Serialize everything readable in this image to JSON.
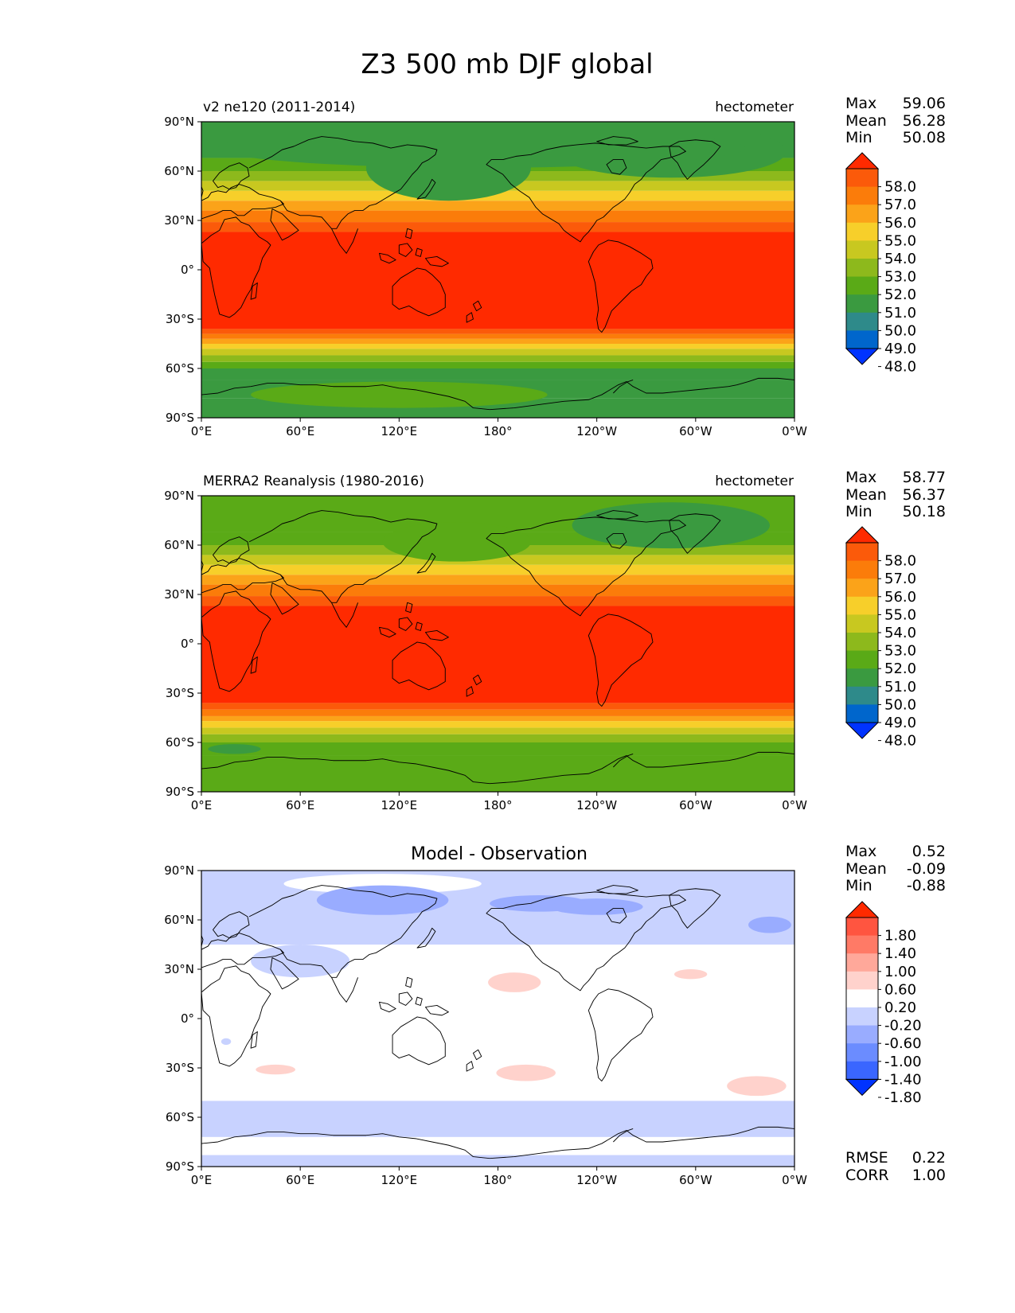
{
  "figure": {
    "title": "Z3 500 mb DJF global"
  },
  "colors": {
    "abs_levels": [
      "#0033ff",
      "#0066cc",
      "#2e8a8a",
      "#3a9a40",
      "#5aaa17",
      "#8db91c",
      "#c8c820",
      "#f7cf2a",
      "#fba319",
      "#fb7c0a",
      "#fb5a0a",
      "#ff2a00"
    ],
    "diff_levels": [
      "#0033ff",
      "#3a66ff",
      "#6b8cff",
      "#99acff",
      "#c8d2ff",
      "#ffffff",
      "#ffd2cc",
      "#ffa89a",
      "#ff7a66",
      "#ff5540",
      "#ff2a00"
    ],
    "land_line": "#000000"
  },
  "chart_data": [
    {
      "type": "heatmap",
      "panel": "test",
      "left_title": "v2 ne120 (2011-2014)",
      "units": "hectometer",
      "center_title": "",
      "xlabels": [
        "0°E",
        "60°E",
        "120°E",
        "180°",
        "120°W",
        "60°W",
        "0°W"
      ],
      "x_values": [
        0,
        60,
        120,
        180,
        240,
        300,
        360
      ],
      "ylabels": [
        "90°N",
        "60°N",
        "30°N",
        "0°",
        "30°S",
        "60°S",
        "90°S"
      ],
      "y_values": [
        90,
        60,
        30,
        0,
        -30,
        -60,
        -90
      ],
      "xlim": [
        0,
        360
      ],
      "ylim": [
        -90,
        90
      ],
      "stats": {
        "Max": "59.06",
        "Mean": "56.28",
        "Min": "50.08"
      },
      "colorbar_ticks": [
        "58.0",
        "57.0",
        "56.0",
        "55.0",
        "54.0",
        "53.0",
        "52.0",
        "51.0",
        "50.0",
        "49.0",
        "48.0"
      ],
      "bands": [
        {
          "lat": -90,
          "level": 3
        },
        {
          "lat": -78,
          "level": 3
        },
        {
          "lat": -67,
          "level": 3
        },
        {
          "lat": -60,
          "level": 4
        },
        {
          "lat": -56,
          "level": 5
        },
        {
          "lat": -52,
          "level": 6
        },
        {
          "lat": -48,
          "level": 7
        },
        {
          "lat": -45,
          "level": 8
        },
        {
          "lat": -42,
          "level": 9
        },
        {
          "lat": -39,
          "level": 10
        },
        {
          "lat": -36,
          "level": 11
        },
        {
          "lat": 23,
          "level": 10
        },
        {
          "lat": 29,
          "level": 9
        },
        {
          "lat": 36,
          "level": 8
        },
        {
          "lat": 42,
          "level": 7
        },
        {
          "lat": 48,
          "level": 6
        },
        {
          "lat": 54,
          "level": 5
        },
        {
          "lat": 60,
          "level": 4
        },
        {
          "lat": 68,
          "level": 3
        },
        {
          "lat": 90,
          "level": 3
        }
      ],
      "blobs": [
        {
          "lon": 150,
          "lat": 62,
          "rlon": 50,
          "rlat": 20,
          "level": 3
        },
        {
          "lon": 285,
          "lat": 72,
          "rlon": 70,
          "rlat": 16,
          "level": 3
        },
        {
          "lon": 170,
          "lat": 74,
          "rlon": 160,
          "rlat": 12,
          "level": 3
        },
        {
          "lon": 120,
          "lat": -76,
          "rlon": 90,
          "rlat": 8,
          "level": 4
        }
      ]
    },
    {
      "type": "heatmap",
      "panel": "reference",
      "left_title": "MERRA2 Reanalysis (1980-2016)",
      "units": "hectometer",
      "center_title": "",
      "xlabels": [
        "0°E",
        "60°E",
        "120°E",
        "180°",
        "120°W",
        "60°W",
        "0°W"
      ],
      "x_values": [
        0,
        60,
        120,
        180,
        240,
        300,
        360
      ],
      "ylabels": [
        "90°N",
        "60°N",
        "30°N",
        "0°",
        "30°S",
        "60°S",
        "90°S"
      ],
      "y_values": [
        90,
        60,
        30,
        0,
        -30,
        -60,
        -90
      ],
      "xlim": [
        0,
        360
      ],
      "ylim": [
        -90,
        90
      ],
      "stats": {
        "Max": "58.77",
        "Mean": "56.37",
        "Min": "50.18"
      },
      "colorbar_ticks": [
        "58.0",
        "57.0",
        "56.0",
        "55.0",
        "54.0",
        "53.0",
        "52.0",
        "51.0",
        "50.0",
        "49.0",
        "48.0"
      ],
      "bands": [
        {
          "lat": -90,
          "level": 4
        },
        {
          "lat": -68,
          "level": 4
        },
        {
          "lat": -60,
          "level": 5
        },
        {
          "lat": -55,
          "level": 6
        },
        {
          "lat": -51,
          "level": 7
        },
        {
          "lat": -47,
          "level": 8
        },
        {
          "lat": -44,
          "level": 9
        },
        {
          "lat": -40,
          "level": 10
        },
        {
          "lat": -36,
          "level": 11
        },
        {
          "lat": 23,
          "level": 10
        },
        {
          "lat": 29,
          "level": 9
        },
        {
          "lat": 36,
          "level": 8
        },
        {
          "lat": 42,
          "level": 7
        },
        {
          "lat": 48,
          "level": 6
        },
        {
          "lat": 54,
          "level": 5
        },
        {
          "lat": 60,
          "level": 4
        },
        {
          "lat": 68,
          "level": 4
        },
        {
          "lat": 90,
          "level": 4
        }
      ],
      "blobs": [
        {
          "lon": 155,
          "lat": 62,
          "rlon": 45,
          "rlat": 12,
          "level": 4
        },
        {
          "lon": 285,
          "lat": 72,
          "rlon": 60,
          "rlat": 14,
          "level": 3
        },
        {
          "lon": 20,
          "lat": -64,
          "rlon": 16,
          "rlat": 3,
          "level": 3
        }
      ]
    },
    {
      "type": "heatmap",
      "panel": "difference",
      "left_title": "",
      "units": "",
      "center_title": "Model - Observation",
      "xlabels": [
        "0°E",
        "60°E",
        "120°E",
        "180°",
        "120°W",
        "60°W",
        "0°W"
      ],
      "x_values": [
        0,
        60,
        120,
        180,
        240,
        300,
        360
      ],
      "ylabels": [
        "90°N",
        "60°N",
        "30°N",
        "0°",
        "30°S",
        "60°S",
        "90°S"
      ],
      "y_values": [
        90,
        60,
        30,
        0,
        -30,
        -60,
        -90
      ],
      "xlim": [
        0,
        360
      ],
      "ylim": [
        -90,
        90
      ],
      "stats": {
        "Max": "0.52",
        "Mean": "-0.09",
        "Min": "-0.88"
      },
      "metrics": {
        "RMSE": "0.22",
        "CORR": "1.00"
      },
      "colorbar_ticks": [
        "1.80",
        "1.40",
        "1.00",
        "0.60",
        "0.20",
        "-0.20",
        "-0.60",
        "-1.00",
        "-1.40",
        "-1.80"
      ],
      "bands": [
        {
          "lat": -90,
          "level": 4
        },
        {
          "lat": -83,
          "level": 5
        },
        {
          "lat": -72,
          "level": 4
        },
        {
          "lat": -50,
          "level": 5
        },
        {
          "lat": 45,
          "level": 4
        },
        {
          "lat": 90,
          "level": 4
        }
      ],
      "blobs": [
        {
          "lon": 230,
          "lat": 70,
          "rlon": 110,
          "rlat": 12,
          "level": 4
        },
        {
          "lon": 60,
          "lat": 35,
          "rlon": 30,
          "rlat": 10,
          "level": 4
        },
        {
          "lon": 110,
          "lat": 82,
          "rlon": 60,
          "rlat": 6,
          "level": 5
        },
        {
          "lon": 110,
          "lat": 72,
          "rlon": 40,
          "rlat": 9,
          "level": 3
        },
        {
          "lon": 205,
          "lat": 70,
          "rlon": 30,
          "rlat": 5,
          "level": 3
        },
        {
          "lon": 240,
          "lat": 68,
          "rlon": 28,
          "rlat": 5,
          "level": 3
        },
        {
          "lon": 345,
          "lat": 62,
          "rlon": 30,
          "rlat": 14,
          "level": 4
        },
        {
          "lon": 345,
          "lat": 57,
          "rlon": 13,
          "rlat": 5,
          "level": 3
        },
        {
          "lon": 190,
          "lat": 22,
          "rlon": 16,
          "rlat": 6,
          "level": 6
        },
        {
          "lon": 297,
          "lat": 27,
          "rlon": 10,
          "rlat": 3,
          "level": 6
        },
        {
          "lon": 45,
          "lat": -31,
          "rlon": 12,
          "rlat": 3,
          "level": 6
        },
        {
          "lon": 197,
          "lat": -33,
          "rlon": 18,
          "rlat": 5,
          "level": 6
        },
        {
          "lon": 337,
          "lat": -41,
          "rlon": 18,
          "rlat": 6,
          "level": 6
        },
        {
          "lon": 15,
          "lat": -14,
          "rlon": 3,
          "rlat": 2,
          "level": 4
        }
      ]
    }
  ]
}
